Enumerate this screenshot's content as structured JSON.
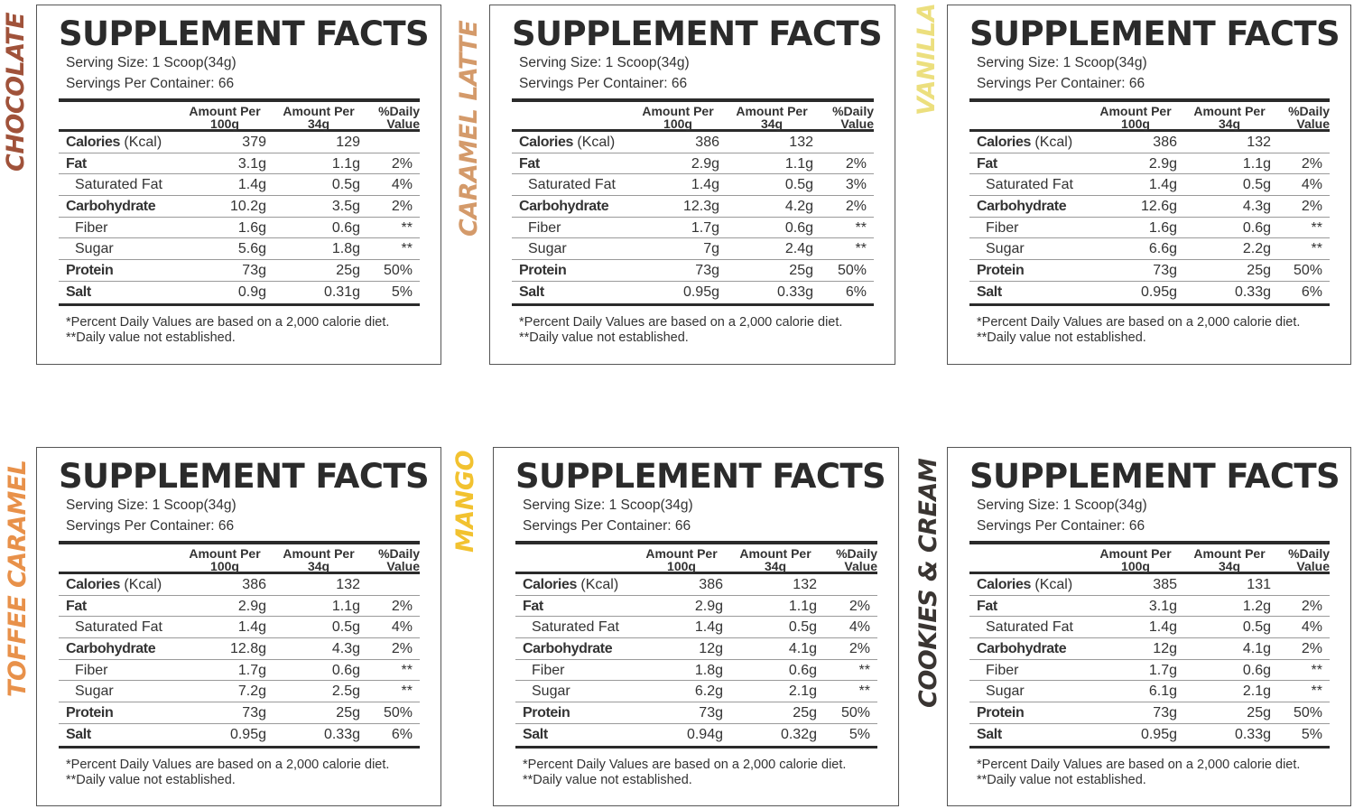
{
  "shared": {
    "title": "SUPPLEMENT FACTS",
    "serving_size": "Serving Size: 1 Scoop(34g)",
    "servings_per_container": "Servings Per Container: 66",
    "col_headers": {
      "per100_line1": "Amount Per",
      "per100_line2": "100g",
      "per34_line1": "Amount Per",
      "per34_line2": "34g",
      "dv_line1": "%Daily",
      "dv_line2": "Value"
    },
    "row_labels": {
      "calories": "Calories",
      "calories_unit": " (Kcal)",
      "fat": "Fat",
      "saturated_fat": "Saturated Fat",
      "carbohydrate": "Carbohydrate",
      "fiber": "Fiber",
      "sugar": "Sugar",
      "protein": "Protein",
      "salt": "Salt"
    },
    "footnote1": "*Percent Daily Values are based on a 2,000 calorie diet.",
    "footnote2": "**Daily value not established."
  },
  "panels": [
    {
      "flavor": "CHOCOLATE",
      "flavor_color": "#a0523a",
      "rows": {
        "calories": [
          "379",
          "129",
          ""
        ],
        "fat": [
          "3.1g",
          "1.1g",
          "2%"
        ],
        "saturated_fat": [
          "1.4g",
          "0.5g",
          "4%"
        ],
        "carbohydrate": [
          "10.2g",
          "3.5g",
          "2%"
        ],
        "fiber": [
          "1.6g",
          "0.6g",
          "**"
        ],
        "sugar": [
          "5.6g",
          "1.8g",
          "**"
        ],
        "protein": [
          "73g",
          "25g",
          "50%"
        ],
        "salt": [
          "0.9g",
          "0.31g",
          "5%"
        ]
      }
    },
    {
      "flavor": "CARAMEL LATTE",
      "flavor_color": "#d49a6a",
      "rows": {
        "calories": [
          "386",
          "132",
          ""
        ],
        "fat": [
          "2.9g",
          "1.1g",
          "2%"
        ],
        "saturated_fat": [
          "1.4g",
          "0.5g",
          "3%"
        ],
        "carbohydrate": [
          "12.3g",
          "4.2g",
          "2%"
        ],
        "fiber": [
          "1.7g",
          "0.6g",
          "**"
        ],
        "sugar": [
          "7g",
          "2.4g",
          "**"
        ],
        "protein": [
          "73g",
          "25g",
          "50%"
        ],
        "salt": [
          "0.95g",
          "0.33g",
          "6%"
        ]
      }
    },
    {
      "flavor": "VANILLA",
      "flavor_color": "#ecdf7e",
      "rows": {
        "calories": [
          "386",
          "132",
          ""
        ],
        "fat": [
          "2.9g",
          "1.1g",
          "2%"
        ],
        "saturated_fat": [
          "1.4g",
          "0.5g",
          "4%"
        ],
        "carbohydrate": [
          "12.6g",
          "4.3g",
          "2%"
        ],
        "fiber": [
          "1.6g",
          "0.6g",
          "**"
        ],
        "sugar": [
          "6.6g",
          "2.2g",
          "**"
        ],
        "protein": [
          "73g",
          "25g",
          "50%"
        ],
        "salt": [
          "0.95g",
          "0.33g",
          "6%"
        ]
      }
    },
    {
      "flavor": "TOFFEE CARAMEL",
      "flavor_color": "#e8914a",
      "rows": {
        "calories": [
          "386",
          "132",
          ""
        ],
        "fat": [
          "2.9g",
          "1.1g",
          "2%"
        ],
        "saturated_fat": [
          "1.4g",
          "0.5g",
          "4%"
        ],
        "carbohydrate": [
          "12.8g",
          "4.3g",
          "2%"
        ],
        "fiber": [
          "1.7g",
          "0.6g",
          "**"
        ],
        "sugar": [
          "7.2g",
          "2.5g",
          "**"
        ],
        "protein": [
          "73g",
          "25g",
          "50%"
        ],
        "salt": [
          "0.95g",
          "0.33g",
          "6%"
        ]
      }
    },
    {
      "flavor": "MANGO",
      "flavor_color": "#f2c230",
      "rows": {
        "calories": [
          "386",
          "132",
          ""
        ],
        "fat": [
          "2.9g",
          "1.1g",
          "2%"
        ],
        "saturated_fat": [
          "1.4g",
          "0.5g",
          "4%"
        ],
        "carbohydrate": [
          "12g",
          "4.1g",
          "2%"
        ],
        "fiber": [
          "1.8g",
          "0.6g",
          "**"
        ],
        "sugar": [
          "6.2g",
          "2.1g",
          "**"
        ],
        "protein": [
          "73g",
          "25g",
          "50%"
        ],
        "salt": [
          "0.94g",
          "0.32g",
          "5%"
        ]
      }
    },
    {
      "flavor": "COOKIES & CREAM",
      "flavor_color": "#3a3532",
      "rows": {
        "calories": [
          "385",
          "131",
          ""
        ],
        "fat": [
          "3.1g",
          "1.2g",
          "2%"
        ],
        "saturated_fat": [
          "1.4g",
          "0.5g",
          "4%"
        ],
        "carbohydrate": [
          "12g",
          "4.1g",
          "2%"
        ],
        "fiber": [
          "1.7g",
          "0.6g",
          "**"
        ],
        "sugar": [
          "6.1g",
          "2.1g",
          "**"
        ],
        "protein": [
          "73g",
          "25g",
          "50%"
        ],
        "salt": [
          "0.95g",
          "0.33g",
          "5%"
        ]
      }
    }
  ]
}
